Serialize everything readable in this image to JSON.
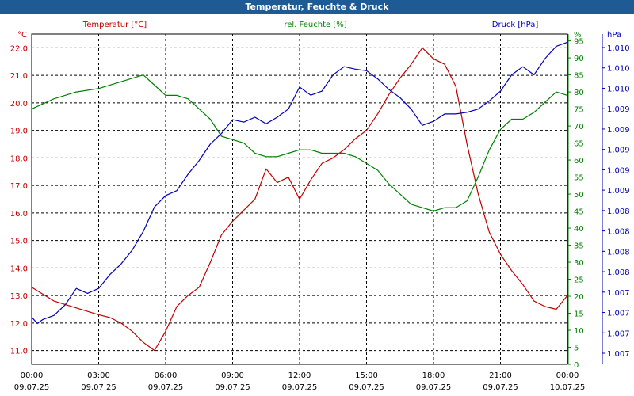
{
  "window": {
    "title": "Temperatur, Feuchte & Druck"
  },
  "colors": {
    "temperature": "#c00000",
    "humidity": "#008000",
    "pressure": "#0000b4",
    "axis_text": "#000000",
    "title_bg": "#1e5a93"
  },
  "chart_data": {
    "type": "line",
    "title": "Temperatur, Feuchte & Druck",
    "x_ticks": [
      {
        "time": "00:00",
        "date": "09.07.25"
      },
      {
        "time": "03:00",
        "date": "09.07.25"
      },
      {
        "time": "06:00",
        "date": "09.07.25"
      },
      {
        "time": "09:00",
        "date": "09.07.25"
      },
      {
        "time": "12:00",
        "date": "09.07.25"
      },
      {
        "time": "15:00",
        "date": "09.07.25"
      },
      {
        "time": "18:00",
        "date": "09.07.25"
      },
      {
        "time": "21:00",
        "date": "09.07.25"
      },
      {
        "time": "00:00",
        "date": "10.07.25"
      }
    ],
    "xlim_hours": [
      0,
      24
    ],
    "grid": true,
    "axes": {
      "left": {
        "unit": "°C",
        "label": "Temperatur [°C]",
        "ylim": [
          10.5,
          22.5
        ],
        "ticks": [
          "11.0",
          "12.0",
          "13.0",
          "14.0",
          "15.0",
          "16.0",
          "17.0",
          "18.0",
          "19.0",
          "20.0",
          "21.0",
          "22.0"
        ]
      },
      "mid": {
        "unit": "%",
        "label": "rel. Feuchte [%]",
        "ylim": [
          0,
          97
        ],
        "ticks": [
          "0",
          "5",
          "10",
          "15",
          "20",
          "25",
          "30",
          "35",
          "40",
          "45",
          "50",
          "55",
          "60",
          "65",
          "70",
          "75",
          "80",
          "85",
          "90",
          "95"
        ]
      },
      "right": {
        "unit": "hPa",
        "label": "Druck [hPa]",
        "ticks": [
          "1.007",
          "1.007",
          "1.007",
          "1.007",
          "1.008",
          "1.008",
          "1.008",
          "1.008",
          "1.009",
          "1.009",
          "1.009",
          "1.009",
          "1.009",
          "1.010",
          "1.010",
          "1.010"
        ]
      }
    },
    "series": [
      {
        "name": "Temperatur [°C]",
        "axis": "left",
        "hours": [
          0,
          1,
          2,
          3,
          3.5,
          4,
          4.5,
          5,
          5.5,
          6,
          6.5,
          7,
          7.5,
          8,
          8.5,
          9,
          9.5,
          10,
          10.5,
          11,
          11.5,
          12,
          12.5,
          13,
          13.5,
          14,
          14.5,
          15,
          15.5,
          16,
          16.5,
          17,
          17.5,
          18,
          18.5,
          19,
          19.5,
          20,
          20.5,
          21,
          21.5,
          22,
          22.5,
          23,
          23.5,
          24
        ],
        "values": [
          13.3,
          12.8,
          12.55,
          12.3,
          12.2,
          12.0,
          11.7,
          11.3,
          11.0,
          11.7,
          12.6,
          13.0,
          13.3,
          14.2,
          15.2,
          15.7,
          16.1,
          16.5,
          17.6,
          17.1,
          17.3,
          16.5,
          17.2,
          17.8,
          18.0,
          18.3,
          18.7,
          19.0,
          19.6,
          20.3,
          20.9,
          21.4,
          22.0,
          21.6,
          21.4,
          20.6,
          18.5,
          16.7,
          15.3,
          14.5,
          13.9,
          13.4,
          12.8,
          12.6,
          12.5,
          13.0
        ]
      },
      {
        "name": "rel. Feuchte [%]",
        "axis": "mid",
        "hours": [
          0,
          1,
          2,
          3,
          4,
          5,
          5.5,
          6,
          6.5,
          7,
          7.5,
          8,
          8.5,
          9,
          9.5,
          10,
          10.5,
          11,
          11.5,
          12,
          12.5,
          13,
          13.5,
          14,
          14.5,
          15,
          15.5,
          16,
          16.5,
          17,
          17.5,
          18,
          18.5,
          19,
          19.5,
          20,
          20.5,
          21,
          21.5,
          22,
          22.5,
          23,
          23.5,
          24
        ],
        "values": [
          75,
          78,
          80,
          81,
          83,
          85,
          82,
          79,
          79,
          78,
          75,
          72,
          67,
          66,
          65,
          62,
          61,
          61,
          62,
          63,
          63,
          62,
          62,
          62,
          61,
          59,
          57,
          53,
          50,
          47,
          46,
          45,
          46,
          46,
          48,
          55,
          63,
          69,
          72,
          72,
          74,
          77,
          80,
          79
        ]
      },
      {
        "name": "Druck [hPa]",
        "axis": "right",
        "hours": [
          0,
          0.25,
          0.5,
          1,
          1.5,
          2,
          2.5,
          3,
          3.5,
          4,
          4.5,
          5,
          5.5,
          6,
          6.5,
          7,
          7.5,
          8,
          8.5,
          9,
          9.5,
          10,
          10.5,
          11,
          11.5,
          12,
          12.5,
          13,
          13.5,
          14,
          14.5,
          15,
          15.5,
          16,
          16.5,
          17,
          17.5,
          18,
          18.5,
          19,
          19.5,
          20,
          20.5,
          21,
          21.5,
          22,
          22.5,
          23,
          23.5,
          24
        ],
        "values": [
          1.00713,
          1.00705,
          1.0071,
          1.00715,
          1.00728,
          1.00748,
          1.00742,
          1.00748,
          1.00765,
          1.00778,
          1.00795,
          1.00818,
          1.00848,
          1.00862,
          1.00868,
          1.00888,
          1.00905,
          1.00925,
          1.00938,
          1.00955,
          1.00952,
          1.00958,
          1.0095,
          1.00958,
          1.00968,
          1.00995,
          1.00985,
          1.0099,
          1.0101,
          1.0102,
          1.01017,
          1.01015,
          1.01005,
          1.00992,
          1.00982,
          1.00968,
          1.00948,
          1.00953,
          1.00962,
          1.00962,
          1.00964,
          1.00968,
          1.00978,
          1.0099,
          1.0101,
          1.0102,
          1.0101,
          1.0103,
          1.01045,
          1.0105
        ]
      }
    ],
    "pressure_scale": {
      "ylim": [
        1.00655,
        1.0106
      ]
    }
  }
}
